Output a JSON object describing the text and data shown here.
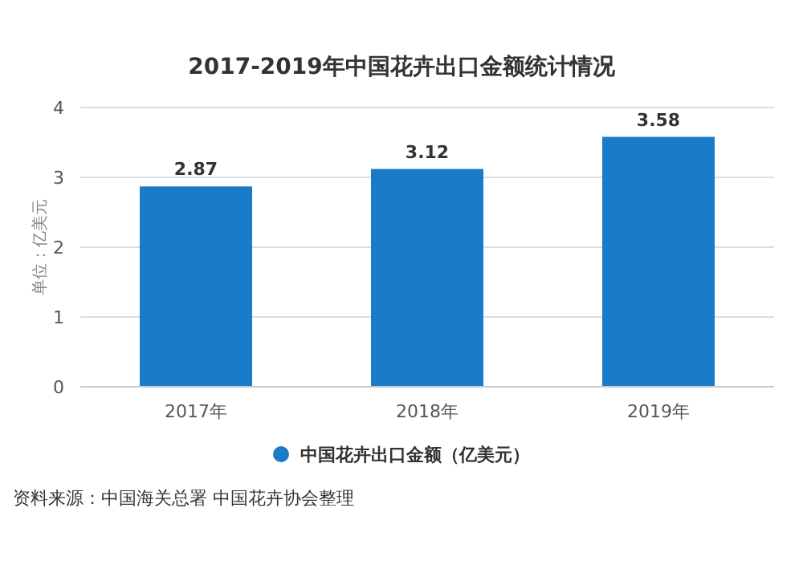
{
  "chart_data": {
    "type": "bar",
    "title": "2017-2019年中国花卉出口金额统计情况",
    "ylabel": "单位：亿美元",
    "categories": [
      "2017年",
      "2018年",
      "2019年"
    ],
    "series": [
      {
        "name": "中国花卉出口金额（亿美元）",
        "color": "#1a7bc9",
        "values": [
          2.87,
          3.12,
          3.58
        ]
      }
    ],
    "ylim": [
      0,
      4
    ],
    "yticks": [
      0,
      1,
      2,
      3,
      4
    ],
    "grid": "y",
    "legend": "bottom",
    "data_labels": true,
    "annotations": [
      "资料来源：中国海关总署 中国花卉协会整理"
    ]
  }
}
